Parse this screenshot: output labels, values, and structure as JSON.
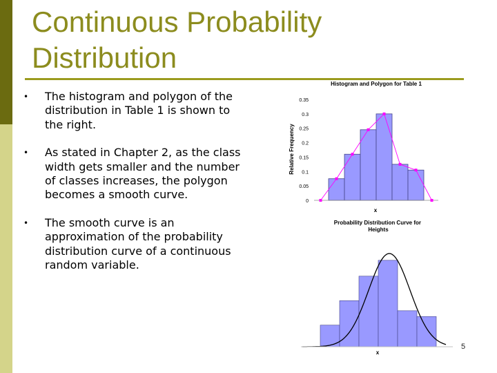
{
  "slide": {
    "title": "Continuous Probability Distribution",
    "bullets": [
      "The histogram and polygon of the distribution in Table 1 is shown to the right.",
      "As stated in Chapter 2, as the class width gets smaller and the number of classes increases, the polygon becomes a smooth curve.",
      "The smooth curve is an approximation of the probability distribution curve of a continuous random variable."
    ],
    "page_number": "5",
    "colors": {
      "title": "#8c8c1e",
      "sidebar_dark": "#6b6b10",
      "sidebar_light": "#d4d48a",
      "bar_fill": "#9999ff",
      "polygon": "#ff00ff"
    }
  },
  "chart_data": [
    {
      "type": "bar",
      "title": "Histogram and Polygon for Table 1",
      "xlabel": "x",
      "ylabel": "Relative Frequency",
      "ylim": [
        0,
        0.35
      ],
      "yticks": [
        "0.35",
        "0.3",
        "0.25",
        "0.2",
        "0.15",
        "0.1",
        "0.05",
        "0"
      ],
      "grid": false,
      "bars": [
        0.075,
        0.16,
        0.245,
        0.3,
        0.125,
        0.105
      ],
      "polygon": [
        0,
        0.075,
        0.16,
        0.245,
        0.3,
        0.125,
        0.105,
        0
      ]
    },
    {
      "type": "bar",
      "title": "Probability Distribution Curve for Heights",
      "xlabel": "x",
      "ylim": [
        0,
        0.35
      ],
      "grid": false,
      "bars": [
        0.075,
        0.16,
        0.245,
        0.3,
        0.125,
        0.105
      ],
      "curve": "smooth bell-shaped curve over histogram"
    }
  ]
}
